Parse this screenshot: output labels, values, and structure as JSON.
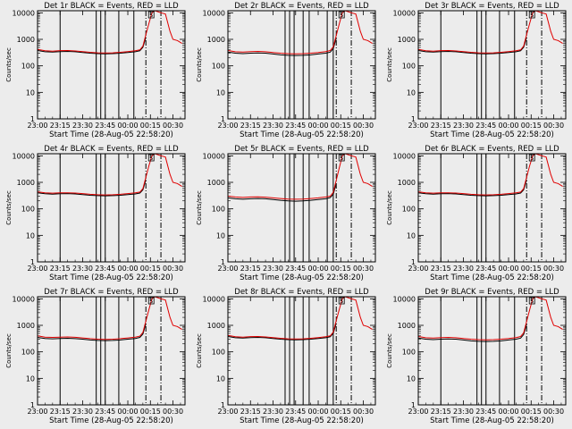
{
  "figure": {
    "xlabel": "Start Time (28-Aug-05 22:58:20)",
    "ylabel": "Counts/sec",
    "x_tick_labels": [
      "23:00",
      "23:15",
      "23:30",
      "23:45",
      "00:00",
      "00:15",
      "00:30"
    ],
    "y_tick_labels": [
      "1",
      "10",
      "100",
      "1000",
      "10000"
    ],
    "flag_label": "S",
    "colors": {
      "background": "#ececec",
      "events": "#000000",
      "lld": "#e00000"
    }
  },
  "chart_data": [
    {
      "type": "line",
      "title": "Det 1r BLACK = Events, RED = LLD",
      "x": [
        "23:00",
        "23:05",
        "23:10",
        "23:15",
        "23:20",
        "23:25",
        "23:30",
        "23:35",
        "23:40",
        "23:45",
        "23:50",
        "23:55",
        "00:00",
        "00:05",
        "00:08",
        "00:10",
        "00:12",
        "00:14",
        "00:16",
        "00:18",
        "00:20",
        "00:22",
        "00:25",
        "00:28",
        "00:30",
        "00:33",
        "00:36"
      ],
      "series": [
        {
          "name": "Events",
          "color": "#000000",
          "values": [
            380,
            340,
            330,
            345,
            350,
            340,
            320,
            300,
            290,
            285,
            290,
            300,
            320,
            340,
            370,
            500,
            1200,
            null,
            null,
            null,
            null,
            null,
            null,
            null,
            null,
            null,
            null
          ]
        },
        {
          "name": "LLD",
          "color": "#e00000",
          "values": [
            420,
            370,
            360,
            375,
            380,
            365,
            345,
            325,
            310,
            305,
            310,
            325,
            345,
            370,
            400,
            560,
            1500,
            4000,
            10000,
            12000,
            11000,
            10000,
            9000,
            2000,
            1000,
            900,
            700
          ]
        }
      ],
      "vlines_solid": [
        "23:15",
        "23:39",
        "23:42",
        "23:45",
        "23:54",
        "00:04"
      ],
      "vlines_dashed": [
        "00:12",
        "00:22"
      ],
      "ylim": [
        1,
        12000
      ],
      "yscale": "log",
      "xlim": [
        "23:00",
        "00:38"
      ]
    },
    {
      "type": "line",
      "title": "Det 2r BLACK = Events, RED = LLD",
      "x": [
        "23:00",
        "23:05",
        "23:10",
        "23:15",
        "23:20",
        "23:25",
        "23:30",
        "23:35",
        "23:40",
        "23:45",
        "23:50",
        "23:55",
        "00:00",
        "00:05",
        "00:08",
        "00:10",
        "00:12",
        "00:14",
        "00:16",
        "00:18",
        "00:20",
        "00:22",
        "00:25",
        "00:28",
        "00:30",
        "00:33",
        "00:36"
      ],
      "series": [
        {
          "name": "Events",
          "color": "#000000",
          "values": [
            330,
            300,
            290,
            300,
            305,
            300,
            280,
            260,
            250,
            245,
            250,
            260,
            280,
            300,
            330,
            450,
            1100,
            null,
            null,
            null,
            null,
            null,
            null,
            null,
            null,
            null,
            null
          ]
        },
        {
          "name": "LLD",
          "color": "#e00000",
          "values": [
            380,
            340,
            330,
            345,
            350,
            340,
            320,
            300,
            290,
            285,
            290,
            300,
            320,
            345,
            380,
            520,
            1400,
            3800,
            10000,
            12000,
            11000,
            10000,
            9000,
            2000,
            1000,
            900,
            700
          ]
        }
      ],
      "vlines_solid": [
        "23:38",
        "23:41",
        "23:44",
        "23:50",
        "23:54",
        "00:06",
        "00:10"
      ],
      "vlines_dashed": [
        "00:12",
        "00:22"
      ],
      "ylim": [
        1,
        12000
      ],
      "yscale": "log",
      "xlim": [
        "23:00",
        "00:38"
      ]
    },
    {
      "type": "line",
      "title": "Det 3r BLACK = Events, RED = LLD",
      "x": [
        "23:00",
        "23:05",
        "23:10",
        "23:15",
        "23:20",
        "23:25",
        "23:30",
        "23:35",
        "23:40",
        "23:45",
        "23:50",
        "23:55",
        "00:00",
        "00:05",
        "00:08",
        "00:10",
        "00:12",
        "00:14",
        "00:16",
        "00:18",
        "00:20",
        "00:22",
        "00:25",
        "00:28",
        "00:30",
        "00:33",
        "00:36"
      ],
      "series": [
        {
          "name": "Events",
          "color": "#000000",
          "values": [
            380,
            340,
            330,
            345,
            350,
            340,
            320,
            300,
            290,
            285,
            290,
            300,
            320,
            340,
            370,
            500,
            1200,
            null,
            null,
            null,
            null,
            null,
            null,
            null,
            null,
            null,
            null
          ]
        },
        {
          "name": "LLD",
          "color": "#e00000",
          "values": [
            420,
            370,
            360,
            375,
            380,
            365,
            345,
            325,
            310,
            305,
            310,
            325,
            345,
            370,
            400,
            560,
            1500,
            4000,
            10000,
            12000,
            11000,
            10000,
            9000,
            2000,
            1000,
            900,
            700
          ]
        }
      ],
      "vlines_solid": [
        "23:15",
        "23:39",
        "23:42",
        "23:45",
        "23:54",
        "00:04"
      ],
      "vlines_dashed": [
        "00:12",
        "00:22"
      ],
      "ylim": [
        1,
        12000
      ],
      "yscale": "log",
      "xlim": [
        "23:00",
        "00:38"
      ]
    },
    {
      "type": "line",
      "title": "Det 4r BLACK = Events, RED = LLD",
      "x": [
        "23:00",
        "23:05",
        "23:10",
        "23:15",
        "23:20",
        "23:25",
        "23:30",
        "23:35",
        "23:40",
        "23:45",
        "23:50",
        "23:55",
        "00:00",
        "00:05",
        "00:08",
        "00:10",
        "00:12",
        "00:14",
        "00:16",
        "00:18",
        "00:20",
        "00:22",
        "00:25",
        "00:28",
        "00:30",
        "00:33",
        "00:36"
      ],
      "series": [
        {
          "name": "Events",
          "color": "#000000",
          "values": [
            400,
            370,
            360,
            370,
            375,
            365,
            345,
            325,
            315,
            310,
            315,
            325,
            345,
            365,
            395,
            520,
            1250,
            null,
            null,
            null,
            null,
            null,
            null,
            null,
            null,
            null,
            null
          ]
        },
        {
          "name": "LLD",
          "color": "#e00000",
          "values": [
            440,
            400,
            390,
            400,
            405,
            395,
            375,
            355,
            340,
            335,
            340,
            355,
            375,
            400,
            430,
            580,
            1550,
            4200,
            10000,
            12000,
            11000,
            10000,
            9000,
            2000,
            1000,
            900,
            700
          ]
        }
      ],
      "vlines_solid": [
        "23:15",
        "23:39",
        "23:42",
        "23:45",
        "23:54",
        "00:04"
      ],
      "vlines_dashed": [
        "00:12",
        "00:22"
      ],
      "ylim": [
        1,
        12000
      ],
      "yscale": "log",
      "xlim": [
        "23:00",
        "00:38"
      ]
    },
    {
      "type": "line",
      "title": "Det 5r BLACK = Events, RED = LLD",
      "x": [
        "23:00",
        "23:05",
        "23:10",
        "23:15",
        "23:20",
        "23:25",
        "23:30",
        "23:35",
        "23:40",
        "23:45",
        "23:50",
        "23:55",
        "00:00",
        "00:05",
        "00:08",
        "00:10",
        "00:12",
        "00:14",
        "00:16",
        "00:18",
        "00:20",
        "00:22",
        "00:25",
        "00:28",
        "00:30",
        "00:33",
        "00:36"
      ],
      "series": [
        {
          "name": "Events",
          "color": "#000000",
          "values": [
            260,
            240,
            230,
            240,
            245,
            240,
            225,
            210,
            200,
            195,
            200,
            210,
            225,
            240,
            265,
            360,
            900,
            null,
            null,
            null,
            null,
            null,
            null,
            null,
            null,
            null,
            null
          ]
        },
        {
          "name": "LLD",
          "color": "#e00000",
          "values": [
            300,
            280,
            270,
            280,
            285,
            275,
            260,
            245,
            235,
            230,
            235,
            245,
            260,
            280,
            300,
            420,
            1200,
            3500,
            10000,
            12000,
            11000,
            10000,
            9000,
            2000,
            1000,
            900,
            700
          ]
        }
      ],
      "vlines_solid": [
        "23:38",
        "23:41",
        "23:44",
        "23:50",
        "23:54",
        "00:06",
        "00:10"
      ],
      "vlines_dashed": [
        "00:12",
        "00:22"
      ],
      "ylim": [
        1,
        12000
      ],
      "yscale": "log",
      "xlim": [
        "23:00",
        "00:38"
      ]
    },
    {
      "type": "line",
      "title": "Det 6r BLACK = Events, RED = LLD",
      "x": [
        "23:00",
        "23:05",
        "23:10",
        "23:15",
        "23:20",
        "23:25",
        "23:30",
        "23:35",
        "23:40",
        "23:45",
        "23:50",
        "23:55",
        "00:00",
        "00:05",
        "00:08",
        "00:10",
        "00:12",
        "00:14",
        "00:16",
        "00:18",
        "00:20",
        "00:22",
        "00:25",
        "00:28",
        "00:30",
        "00:33",
        "00:36"
      ],
      "series": [
        {
          "name": "Events",
          "color": "#000000",
          "values": [
            400,
            370,
            360,
            370,
            375,
            365,
            345,
            325,
            315,
            310,
            315,
            325,
            345,
            365,
            395,
            520,
            1250,
            null,
            null,
            null,
            null,
            null,
            null,
            null,
            null,
            null,
            null
          ]
        },
        {
          "name": "LLD",
          "color": "#e00000",
          "values": [
            440,
            400,
            390,
            400,
            405,
            395,
            375,
            355,
            340,
            335,
            340,
            355,
            375,
            400,
            430,
            580,
            1550,
            4200,
            10000,
            12000,
            11000,
            10000,
            9000,
            2000,
            1000,
            900,
            700
          ]
        }
      ],
      "vlines_solid": [
        "23:15",
        "23:39",
        "23:42",
        "23:45",
        "23:54",
        "00:04"
      ],
      "vlines_dashed": [
        "00:12",
        "00:22"
      ],
      "ylim": [
        1,
        12000
      ],
      "yscale": "log",
      "xlim": [
        "23:00",
        "00:38"
      ]
    },
    {
      "type": "line",
      "title": "Det 7r BLACK = Events, RED = LLD",
      "x": [
        "23:00",
        "23:05",
        "23:10",
        "23:15",
        "23:20",
        "23:25",
        "23:30",
        "23:35",
        "23:40",
        "23:45",
        "23:50",
        "23:55",
        "00:00",
        "00:05",
        "00:08",
        "00:10",
        "00:12",
        "00:14",
        "00:16",
        "00:18",
        "00:20",
        "00:22",
        "00:25",
        "00:28",
        "00:30",
        "00:33",
        "00:36"
      ],
      "series": [
        {
          "name": "Events",
          "color": "#000000",
          "values": [
            350,
            320,
            310,
            320,
            325,
            315,
            300,
            280,
            270,
            265,
            270,
            280,
            300,
            320,
            350,
            470,
            1150,
            null,
            null,
            null,
            null,
            null,
            null,
            null,
            null,
            null,
            null
          ]
        },
        {
          "name": "LLD",
          "color": "#e00000",
          "values": [
            400,
            360,
            350,
            360,
            365,
            355,
            335,
            315,
            300,
            295,
            300,
            315,
            335,
            360,
            390,
            540,
            1450,
            3900,
            10000,
            12000,
            11000,
            10000,
            9000,
            2000,
            1000,
            900,
            700
          ]
        }
      ],
      "vlines_solid": [
        "23:15",
        "23:39",
        "23:42",
        "23:45",
        "23:54",
        "00:04"
      ],
      "vlines_dashed": [
        "00:12",
        "00:22"
      ],
      "ylim": [
        1,
        12000
      ],
      "yscale": "log",
      "xlim": [
        "23:00",
        "00:38"
      ]
    },
    {
      "type": "line",
      "title": "Det 8r BLACK = Events, RED = LLD",
      "x": [
        "23:00",
        "23:05",
        "23:10",
        "23:15",
        "23:20",
        "23:25",
        "23:30",
        "23:35",
        "23:40",
        "23:45",
        "23:50",
        "23:55",
        "00:00",
        "00:05",
        "00:08",
        "00:10",
        "00:12",
        "00:14",
        "00:16",
        "00:18",
        "00:20",
        "00:22",
        "00:25",
        "00:28",
        "00:30",
        "00:33",
        "00:36"
      ],
      "series": [
        {
          "name": "Events",
          "color": "#000000",
          "values": [
            380,
            340,
            330,
            345,
            350,
            340,
            320,
            300,
            290,
            285,
            290,
            300,
            320,
            340,
            370,
            500,
            1200,
            null,
            null,
            null,
            null,
            null,
            null,
            null,
            null,
            null,
            null
          ]
        },
        {
          "name": "LLD",
          "color": "#e00000",
          "values": [
            420,
            370,
            360,
            375,
            380,
            365,
            345,
            325,
            310,
            305,
            310,
            325,
            345,
            370,
            400,
            560,
            1500,
            4000,
            10000,
            12000,
            11000,
            10000,
            9000,
            2000,
            1000,
            900,
            700
          ]
        }
      ],
      "vlines_solid": [
        "23:38",
        "23:41",
        "23:44",
        "23:50",
        "23:54",
        "00:06",
        "00:10"
      ],
      "vlines_dashed": [
        "00:12",
        "00:22"
      ],
      "ylim": [
        1,
        12000
      ],
      "yscale": "log",
      "xlim": [
        "23:00",
        "00:38"
      ]
    },
    {
      "type": "line",
      "title": "Det 9r BLACK = Events, RED = LLD",
      "x": [
        "23:00",
        "23:05",
        "23:10",
        "23:15",
        "23:20",
        "23:25",
        "23:30",
        "23:35",
        "23:40",
        "23:45",
        "23:50",
        "23:55",
        "00:00",
        "00:05",
        "00:08",
        "00:10",
        "00:12",
        "00:14",
        "00:16",
        "00:18",
        "00:20",
        "00:22",
        "00:25",
        "00:28",
        "00:30",
        "00:33",
        "00:36"
      ],
      "series": [
        {
          "name": "Events",
          "color": "#000000",
          "values": [
            330,
            300,
            290,
            300,
            305,
            300,
            280,
            260,
            250,
            245,
            250,
            260,
            280,
            300,
            330,
            450,
            1100,
            null,
            null,
            null,
            null,
            null,
            null,
            null,
            null,
            null,
            null
          ]
        },
        {
          "name": "LLD",
          "color": "#e00000",
          "values": [
            380,
            340,
            330,
            345,
            350,
            340,
            320,
            300,
            290,
            285,
            290,
            300,
            320,
            345,
            380,
            520,
            1400,
            3800,
            10000,
            12000,
            11000,
            10000,
            9000,
            2000,
            1000,
            900,
            700
          ]
        }
      ],
      "vlines_solid": [
        "23:15",
        "23:39",
        "23:42",
        "23:45",
        "23:54",
        "00:04"
      ],
      "vlines_dashed": [
        "00:12",
        "00:22"
      ],
      "ylim": [
        1,
        12000
      ],
      "yscale": "log",
      "xlim": [
        "23:00",
        "00:38"
      ]
    }
  ]
}
